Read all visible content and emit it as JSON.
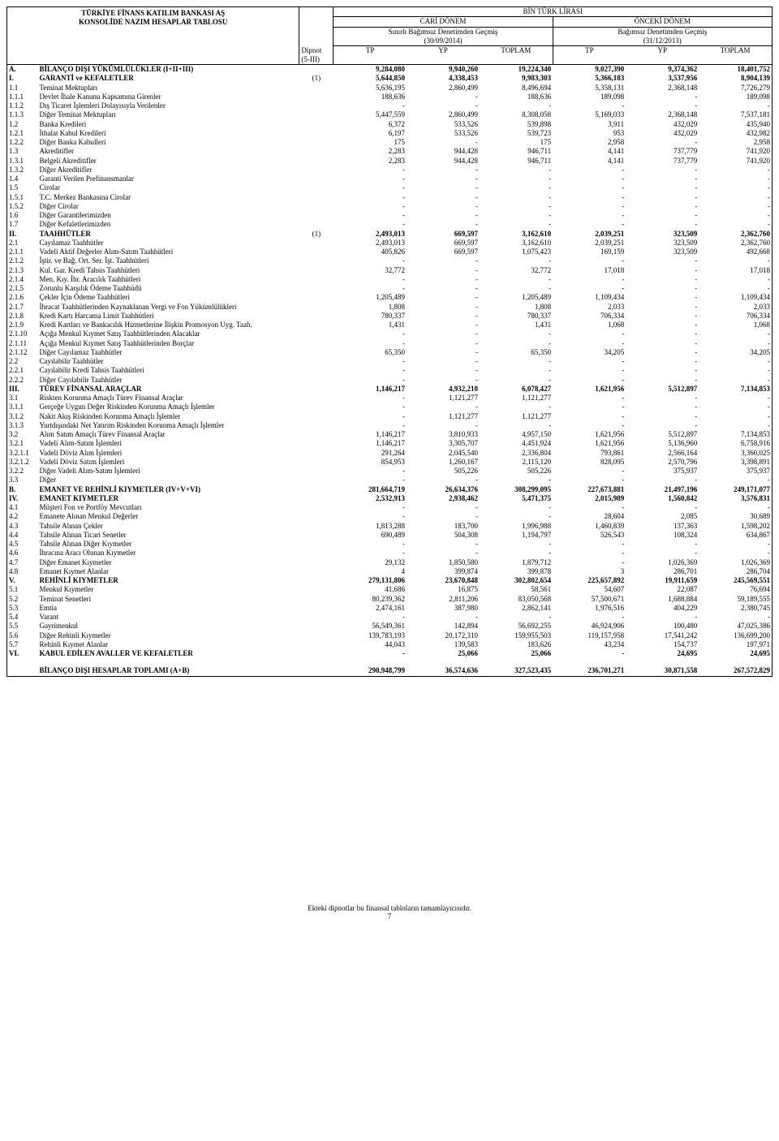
{
  "header": {
    "company": "TÜRKİYE FİNANS KATILIM BANKASI AŞ",
    "report": "KONSOLİDE NAZIM HESAPLAR TABLOSU",
    "currency": "BİN TÜRK LİRASI",
    "current_period": "CARİ DÖNEM",
    "prior_period": "ÖNCEKİ DÖNEM",
    "current_audit": "Sınırlı Bağımsız Denetimden Geçmiş",
    "prior_audit": "Bağımsız Denetimden Geçmiş",
    "current_date": "(30/09/2014)",
    "prior_date": "(31/12/2013)",
    "note_col": "Dipnot (5-III)",
    "tp": "TP",
    "yp": "YP",
    "total": "TOPLAM"
  },
  "rows": [
    {
      "c": "A.",
      "d": "BİLANÇO DIŞI YÜKÜMLÜLÜKLER (I+II+III)",
      "n": "",
      "v": [
        "9,284,080",
        "9,940,260",
        "19,224,340",
        "9,027,390",
        "9,374,362",
        "18,401,752"
      ],
      "b": 1
    },
    {
      "c": "I.",
      "d": "GARANTİ ve KEFALETLER",
      "n": "(1)",
      "v": [
        "5,644,850",
        "4,338,453",
        "9,983,303",
        "5,366,183",
        "3,537,956",
        "8,904,139"
      ],
      "b": 1
    },
    {
      "c": "1.1",
      "d": "Teminat Mektupları",
      "n": "",
      "v": [
        "5,636,195",
        "2,860,499",
        "8,496,694",
        "5,358,131",
        "2,368,148",
        "7,726,279"
      ]
    },
    {
      "c": "1.1.1",
      "d": "Devlet İhale Kanunu Kapsamına Girenler",
      "n": "",
      "v": [
        "188,636",
        "-",
        "188,636",
        "189,098",
        "-",
        "189,098"
      ]
    },
    {
      "c": "1.1.2",
      "d": "Dış Ticaret İşlemleri Dolayısıyla Verilenler",
      "n": "",
      "v": [
        "-",
        "-",
        "-",
        "-",
        "-",
        "-"
      ]
    },
    {
      "c": "1.1.3",
      "d": "Diğer Teminat Mektupları",
      "n": "",
      "v": [
        "5,447,559",
        "2,860,499",
        "8,308,058",
        "5,169,033",
        "2,368,148",
        "7,537,181"
      ]
    },
    {
      "c": "1.2",
      "d": "Banka Kredileri",
      "n": "",
      "v": [
        "6,372",
        "533,526",
        "539,898",
        "3,911",
        "432,029",
        "435,940"
      ]
    },
    {
      "c": "1.2.1",
      "d": "İthalat Kabul Kredileri",
      "n": "",
      "v": [
        "6,197",
        "533,526",
        "539,723",
        "953",
        "432,029",
        "432,982"
      ]
    },
    {
      "c": "1.2.2",
      "d": "Diğer Banka Kabulleri",
      "n": "",
      "v": [
        "175",
        "-",
        "175",
        "2,958",
        "-",
        "2,958"
      ]
    },
    {
      "c": "1.3",
      "d": "Akreditifler",
      "n": "",
      "v": [
        "2,283",
        "944,428",
        "946,711",
        "4,141",
        "737,779",
        "741,920"
      ]
    },
    {
      "c": "1.3.1",
      "d": "Belgeli Akreditifler",
      "n": "",
      "v": [
        "2,283",
        "944,428",
        "946,711",
        "4,141",
        "737,779",
        "741,920"
      ]
    },
    {
      "c": "1.3.2",
      "d": "Diğer Akreditifler",
      "n": "",
      "v": [
        "-",
        "-",
        "-",
        "-",
        "-",
        "-"
      ]
    },
    {
      "c": "1.4",
      "d": "Garanti Verilen Prefinansmanlar",
      "n": "",
      "v": [
        "-",
        "-",
        "-",
        "-",
        "-",
        "-"
      ]
    },
    {
      "c": "1.5",
      "d": "Cirolar",
      "n": "",
      "v": [
        "-",
        "-",
        "-",
        "-",
        "-",
        "-"
      ]
    },
    {
      "c": "1.5.1",
      "d": "T.C. Merkez Bankasına Cirolar",
      "n": "",
      "v": [
        "-",
        "-",
        "-",
        "-",
        "-",
        "-"
      ]
    },
    {
      "c": "1.5.2",
      "d": "Diğer Cirolar",
      "n": "",
      "v": [
        "-",
        "-",
        "-",
        "-",
        "-",
        "-"
      ]
    },
    {
      "c": "1.6",
      "d": "Diğer Garantilerimizden",
      "n": "",
      "v": [
        "-",
        "-",
        "-",
        "-",
        "-",
        "-"
      ]
    },
    {
      "c": "1.7",
      "d": "Diğer Kefaletlerimizden",
      "n": "",
      "v": [
        "-",
        "-",
        "-",
        "-",
        "-",
        "-"
      ]
    },
    {
      "c": "II.",
      "d": "TAAHHÜTLER",
      "n": "(1)",
      "v": [
        "2,493,013",
        "669,597",
        "3,162,610",
        "2,039,251",
        "323,509",
        "2,362,760"
      ],
      "b": 1
    },
    {
      "c": "2.1",
      "d": "Cayılamaz Taahhütler",
      "n": "",
      "v": [
        "2,493,013",
        "669,597",
        "3,162,610",
        "2,039,251",
        "323,509",
        "2,362,760"
      ]
    },
    {
      "c": "2.1.1",
      "d": "Vadeli Aktif Değerler Alım-Satım Taahhütleri",
      "n": "",
      "v": [
        "405,826",
        "669,597",
        "1,075,423",
        "169,159",
        "323,509",
        "492,668"
      ]
    },
    {
      "c": "2.1.2",
      "d": "İştir. ve Bağ. Ort. Ser. İşt. Taahhütleri",
      "n": "",
      "v": [
        "-",
        "-",
        "-",
        "-",
        "-",
        "-"
      ]
    },
    {
      "c": "2.1.3",
      "d": "Kul. Gar. Kredi Tahsis Taahhütleri",
      "n": "",
      "v": [
        "32,772",
        "-",
        "32,772",
        "17,018",
        "-",
        "17,018"
      ]
    },
    {
      "c": "2.1.4",
      "d": "Men. Kıy. İhr. Aracılık Taahhütleri",
      "n": "",
      "v": [
        "-",
        "-",
        "-",
        "-",
        "-",
        "-"
      ]
    },
    {
      "c": "2.1.5",
      "d": "Zorunlu Karşılık Ödeme Taahhüdü",
      "n": "",
      "v": [
        "-",
        "-",
        "-",
        "-",
        "-",
        "-"
      ]
    },
    {
      "c": "2.1.6",
      "d": "Çekler İçin Ödeme Taahhütleri",
      "n": "",
      "v": [
        "1,205,489",
        "-",
        "1,205,489",
        "1,109,434",
        "-",
        "1,109,434"
      ]
    },
    {
      "c": "2.1.7",
      "d": "İhracat Taahhütlerinden Kaynaklanan Vergi ve Fon Yükümlülükleri",
      "n": "",
      "v": [
        "1,808",
        "-",
        "1,808",
        "2,033",
        "-",
        "2,033"
      ]
    },
    {
      "c": "2.1.8",
      "d": "Kredi Kartı Harcama Limit Taahhütleri",
      "n": "",
      "v": [
        "780,337",
        "-",
        "780,337",
        "706,334",
        "-",
        "706,334"
      ]
    },
    {
      "c": "2.1.9",
      "d": "Kredi Kartları ve Bankacılık Hizmetlerine İlişkin Promosyon Uyg. Taah.",
      "n": "",
      "v": [
        "1,431",
        "-",
        "1,431",
        "1,068",
        "-",
        "1,068"
      ]
    },
    {
      "c": "2.1.10",
      "d": "Açığa Menkul Kıymet Satış Taahhütlerinden Alacaklar",
      "n": "",
      "v": [
        "-",
        "-",
        "-",
        "-",
        "-",
        "-"
      ]
    },
    {
      "c": "2.1.11",
      "d": "Açığa Menkul Kıymet Satış Taahhütlerinden Borçlar",
      "n": "",
      "v": [
        "-",
        "-",
        "-",
        "-",
        "-",
        "-"
      ]
    },
    {
      "c": "2.1.12",
      "d": "Diğer Cayılamaz Taahhütler",
      "n": "",
      "v": [
        "65,350",
        "-",
        "65,350",
        "34,205",
        "-",
        "34,205"
      ]
    },
    {
      "c": "2.2",
      "d": "Cayılabilir Taahhütler",
      "n": "",
      "v": [
        "-",
        "-",
        "-",
        "-",
        "-",
        "-"
      ]
    },
    {
      "c": "2.2.1",
      "d": "Cayılabilir Kredi Tahsis Taahhütleri",
      "n": "",
      "v": [
        "-",
        "-",
        "-",
        "-",
        "-",
        "-"
      ]
    },
    {
      "c": "2.2.2",
      "d": "Diğer Cayılabilir Taahhütler",
      "n": "",
      "v": [
        "-",
        "-",
        "-",
        "-",
        "-",
        "-"
      ]
    },
    {
      "c": "III.",
      "d": "TÜREV FİNANSAL ARAÇLAR",
      "n": "",
      "v": [
        "1,146,217",
        "4,932,210",
        "6,078,427",
        "1,621,956",
        "5,512,897",
        "7,134,853"
      ],
      "b": 1
    },
    {
      "c": "3.1",
      "d": "Riskten Korunma Amaçlı Türev Finansal Araçlar",
      "n": "",
      "v": [
        "-",
        "1,121,277",
        "1,121,277",
        "-",
        "-",
        "-"
      ]
    },
    {
      "c": "3.1.1",
      "d": "Gerçeğe Uygun Değer Riskinden Korunma Amaçlı İşlemler",
      "n": "",
      "v": [
        "-",
        "-",
        "-",
        "-",
        "-",
        "-"
      ]
    },
    {
      "c": "3.1.2",
      "d": "Nakit Akış Riskinden Korunma Amaçlı İşlemler",
      "n": "",
      "v": [
        "-",
        "1,121,277",
        "1,121,277",
        "-",
        "-",
        "-"
      ]
    },
    {
      "c": "3.1.3",
      "d": "Yurtdışındaki Net Yatırım Riskinden Korunma Amaçlı İşlemler",
      "n": "",
      "v": [
        "-",
        "-",
        "-",
        "-",
        "-",
        "-"
      ]
    },
    {
      "c": "3.2",
      "d": "Alım Satım Amaçlı Türev Finansal Araçlar",
      "n": "",
      "v": [
        "1,146,217",
        "3,810,933",
        "4,957,150",
        "1,621,956",
        "5,512,897",
        "7,134,853"
      ]
    },
    {
      "c": "3.2.1",
      "d": "Vadeli Alım-Satım İşlemleri",
      "n": "",
      "v": [
        "1,146,217",
        "3,305,707",
        "4,451,924",
        "1,621,956",
        "5,136,960",
        "6,758,916"
      ]
    },
    {
      "c": "3.2.1.1",
      "d": "Vadeli Döviz Alım İşlemleri",
      "n": "",
      "v": [
        "291,264",
        "2,045,540",
        "2,336,804",
        "793,861",
        "2,566,164",
        "3,360,025"
      ]
    },
    {
      "c": "3.2.1.2",
      "d": "Vadeli Döviz Satım İşlemleri",
      "n": "",
      "v": [
        "854,953",
        "1,260,167",
        "2,115,120",
        "828,095",
        "2,570,796",
        "3,398,891"
      ]
    },
    {
      "c": "3.2.2",
      "d": "Diğer Vadeli Alım-Satım İşlemleri",
      "n": "",
      "v": [
        "-",
        "505,226",
        "505,226",
        "-",
        "375,937",
        "375,937"
      ]
    },
    {
      "c": "3.3",
      "d": "Diğer",
      "n": "",
      "v": [
        "-",
        "-",
        "-",
        "-",
        "-",
        "-"
      ]
    },
    {
      "c": "B.",
      "d": "EMANET VE REHİNLİ KIYMETLER (IV+V+VI)",
      "n": "",
      "v": [
        "281,664,719",
        "26,634,376",
        "308,299,095",
        "227,673,881",
        "21,497,196",
        "249,171,077"
      ],
      "b": 1
    },
    {
      "c": "IV.",
      "d": "EMANET KIYMETLER",
      "n": "",
      "v": [
        "2,532,913",
        "2,938,462",
        "5,471,375",
        "2,015,989",
        "1,560,842",
        "3,576,831"
      ],
      "b": 1
    },
    {
      "c": "4.1",
      "d": "Müşteri Fon ve Portföy Mevcutları",
      "n": "",
      "v": [
        "-",
        "-",
        "-",
        "-",
        "-",
        "-"
      ]
    },
    {
      "c": "4.2",
      "d": "Emanete Alınan Menkul Değerler",
      "n": "",
      "v": [
        "-",
        "-",
        "-",
        "28,604",
        "2,085",
        "30,689"
      ]
    },
    {
      "c": "4.3",
      "d": "Tahsile Alınan Çekler",
      "n": "",
      "v": [
        "1,813,288",
        "183,700",
        "1,996,988",
        "1,460,839",
        "137,363",
        "1,598,202"
      ]
    },
    {
      "c": "4.4",
      "d": "Tahsile Alınan Ticari Senetler",
      "n": "",
      "v": [
        "690,489",
        "504,308",
        "1,194,797",
        "526,543",
        "108,324",
        "634,867"
      ]
    },
    {
      "c": "4.5",
      "d": "Tahsile Alınan Diğer Kıymetler",
      "n": "",
      "v": [
        "-",
        "-",
        "-",
        "-",
        "-",
        "-"
      ]
    },
    {
      "c": "4.6",
      "d": "İhracına Aracı Olunan Kıymetler",
      "n": "",
      "v": [
        "-",
        "-",
        "-",
        "-",
        "-",
        "-"
      ]
    },
    {
      "c": "4.7",
      "d": "Diğer Emanet Kıymetler",
      "n": "",
      "v": [
        "29,132",
        "1,850,580",
        "1,879,712",
        "-",
        "1,026,369",
        "1,026,369"
      ]
    },
    {
      "c": "4.8",
      "d": "Emanet Kıymet Alanlar",
      "n": "",
      "v": [
        "4",
        "399,874",
        "399,878",
        "3",
        "286,701",
        "286,704"
      ]
    },
    {
      "c": "V.",
      "d": "REHİNLİ KIYMETLER",
      "n": "",
      "v": [
        "279,131,806",
        "23,670,848",
        "302,802,654",
        "225,657,892",
        "19,911,659",
        "245,569,551"
      ],
      "b": 1
    },
    {
      "c": "5.1",
      "d": "Menkul Kıymetler",
      "n": "",
      "v": [
        "41,686",
        "16,875",
        "58,561",
        "54,607",
        "22,087",
        "76,694"
      ]
    },
    {
      "c": "5.2",
      "d": "Teminat Senetleri",
      "n": "",
      "v": [
        "80,239,362",
        "2,811,206",
        "83,050,568",
        "57,500,671",
        "1,688,884",
        "59,189,555"
      ]
    },
    {
      "c": "5.3",
      "d": "Emtia",
      "n": "",
      "v": [
        "2,474,161",
        "387,980",
        "2,862,141",
        "1,976,516",
        "404,229",
        "2,380,745"
      ]
    },
    {
      "c": "5.4",
      "d": "Varant",
      "n": "",
      "v": [
        "-",
        "-",
        "-",
        "-",
        "-",
        "-"
      ]
    },
    {
      "c": "5.5",
      "d": "Gayrimenkul",
      "n": "",
      "v": [
        "56,549,361",
        "142,894",
        "56,692,255",
        "46,924,906",
        "100,480",
        "47,025,386"
      ]
    },
    {
      "c": "5.6",
      "d": "Diğer Rehinli Kıymetler",
      "n": "",
      "v": [
        "139,783,193",
        "20,172,310",
        "159,955,503",
        "119,157,958",
        "17,541,242",
        "136,699,200"
      ]
    },
    {
      "c": "5.7",
      "d": "Rehinli Kıymet Alanlar",
      "n": "",
      "v": [
        "44,043",
        "139,583",
        "183,626",
        "43,234",
        "154,737",
        "197,971"
      ]
    },
    {
      "c": "VI.",
      "d": "KABUL EDİLEN AVALLER VE KEFALETLER",
      "n": "",
      "v": [
        "-",
        "25,066",
        "25,066",
        "-",
        "24,695",
        "24,695"
      ],
      "b": 1
    }
  ],
  "total": {
    "c": "",
    "d": "BİLANÇO DIŞI HESAPLAR TOPLAMI (A+B)",
    "v": [
      "290,948,799",
      "36,574,636",
      "327,523,435",
      "236,701,271",
      "30,871,558",
      "267,572,829"
    ]
  },
  "footnote": "Ekteki dipnotlar bu finansal tabloların tamamlayıcısıdır.",
  "page": "7"
}
